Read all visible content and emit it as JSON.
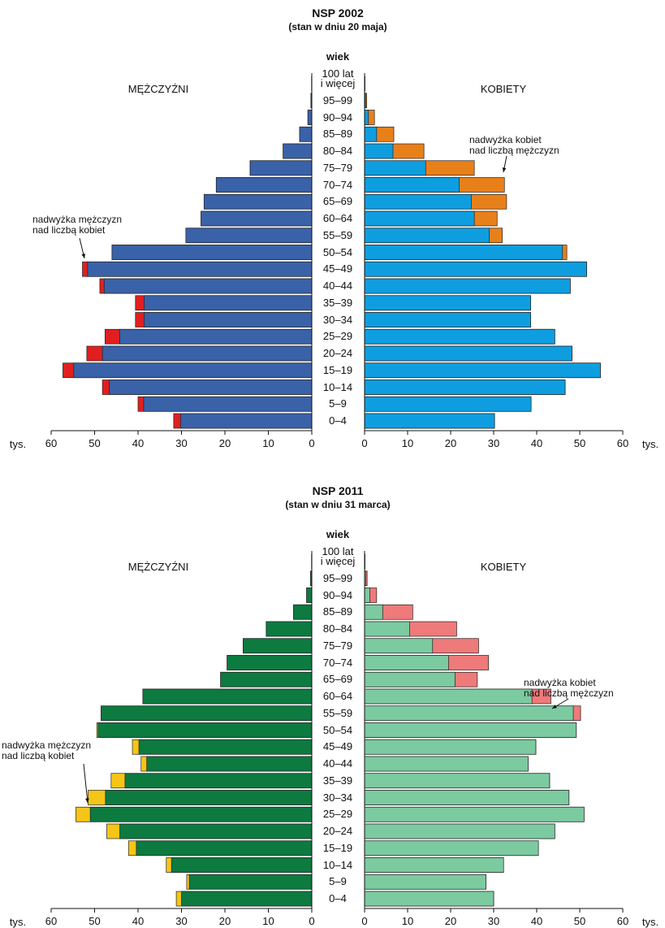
{
  "chart_data": [
    {
      "type": "pyramid",
      "title": "NSP 2002",
      "subtitle": "(stan w dniu 20 maja)",
      "axis_label": "wiek",
      "unit": "tys.",
      "categories": [
        "0–4",
        "5–9",
        "10–14",
        "15–19",
        "20–24",
        "25–29",
        "30–34",
        "35–39",
        "40–44",
        "45–49",
        "50–54",
        "55–59",
        "60–64",
        "65–69",
        "70–74",
        "75–79",
        "80–84",
        "85–89",
        "90–94",
        "95–99",
        "100 lat\ni więcej"
      ],
      "series": [
        {
          "name": "MĘŻCZYŹNI",
          "color": "#3a62a8",
          "surplus_color": "#e02020",
          "values": [
            31.8,
            40.0,
            48.2,
            57.3,
            51.8,
            47.6,
            40.6,
            40.6,
            48.8,
            52.8,
            46.0,
            29.0,
            25.5,
            24.8,
            22.0,
            14.2,
            6.6,
            2.8,
            0.9,
            0.2,
            0.05
          ]
        },
        {
          "name": "KOBIETY",
          "color": "#0e9ee0",
          "surplus_color": "#e8801a",
          "values": [
            30.2,
            38.7,
            46.6,
            54.8,
            48.2,
            44.2,
            38.6,
            38.6,
            47.8,
            51.6,
            47.0,
            32.0,
            30.8,
            33.0,
            32.5,
            25.5,
            13.8,
            6.8,
            2.3,
            0.5,
            0.1
          ]
        }
      ],
      "annotations": [
        "nadwyżka kobiet\nnad liczbą mężczyzn",
        "nadwyżka mężczyzn\nnad liczbą kobiet"
      ],
      "xlim": [
        0,
        60
      ],
      "xticks": [
        0,
        10,
        20,
        30,
        40,
        50,
        60
      ]
    },
    {
      "type": "pyramid",
      "title": "NSP 2011",
      "subtitle": "(stan w dniu 31 marca)",
      "axis_label": "wiek",
      "unit": "tys.",
      "categories": [
        "0–4",
        "5–9",
        "10–14",
        "15–19",
        "20–24",
        "25–29",
        "30–34",
        "35–39",
        "40–44",
        "45–49",
        "50–54",
        "55–59",
        "60–64",
        "65–69",
        "70–74",
        "75–79",
        "80–84",
        "85–89",
        "90–94",
        "95–99",
        "100 lat\ni więcej"
      ],
      "series": [
        {
          "name": "MĘŻCZYŹNI",
          "color": "#0d7a40",
          "surplus_color": "#f5c518",
          "values": [
            31.2,
            28.8,
            33.5,
            42.2,
            47.2,
            54.3,
            51.5,
            46.2,
            39.3,
            41.3,
            49.5,
            48.5,
            38.9,
            21.0,
            19.5,
            15.8,
            10.5,
            4.2,
            1.2,
            0.3,
            0.05
          ]
        },
        {
          "name": "KOBIETY",
          "color": "#7ccaa0",
          "surplus_color": "#ee7a7a",
          "values": [
            30.0,
            28.2,
            32.3,
            40.4,
            44.2,
            51.0,
            47.5,
            43.0,
            38.0,
            39.8,
            49.2,
            50.2,
            43.3,
            26.2,
            28.8,
            26.5,
            21.4,
            11.2,
            2.8,
            0.6,
            0.1
          ]
        }
      ],
      "annotations": [
        "nadwyżka kobiet\nnad liczbą mężczyzn",
        "nadwyżka mężczyzn\nnad liczbą kobiet"
      ],
      "xlim": [
        0,
        60
      ],
      "xticks": [
        0,
        10,
        20,
        30,
        40,
        50,
        60
      ]
    }
  ]
}
